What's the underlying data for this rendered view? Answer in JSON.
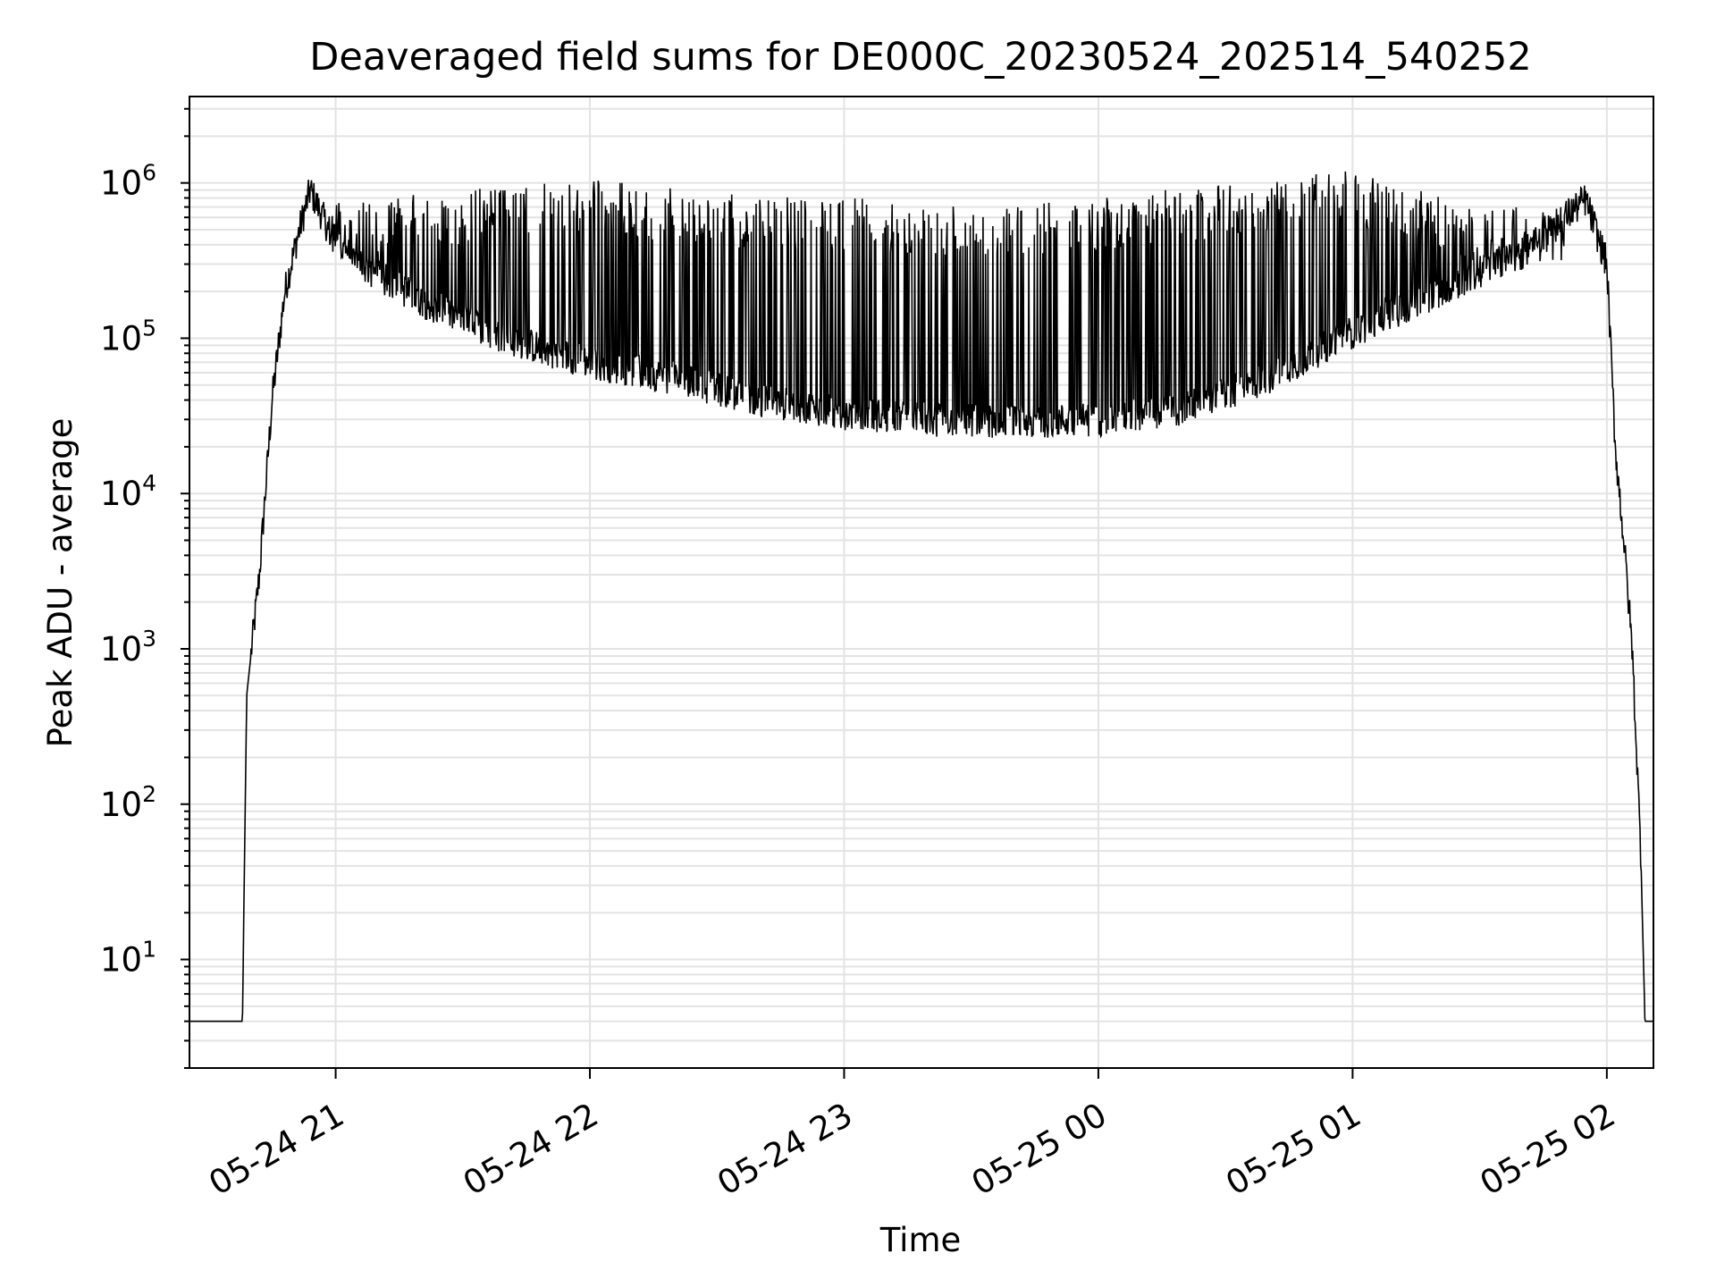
{
  "chart_data": {
    "type": "line",
    "title": "Deaveraged field sums for DE000C_20230524_202514_540252",
    "xlabel": "Time",
    "ylabel": "Peak ADU - average",
    "yscale": "log",
    "ylim": [
      2.0,
      3600000
    ],
    "xlim": [
      "2023-05-24 20:25:30",
      "2023-05-25 02:11:00"
    ],
    "grid": true,
    "line_color": "#000000",
    "grid_color": "#e3e3e3",
    "x_ticks": [
      {
        "value": "2023-05-24 21:00",
        "label": "05-24 21"
      },
      {
        "value": "2023-05-24 22:00",
        "label": "05-24 22"
      },
      {
        "value": "2023-05-24 23:00",
        "label": "05-24 23"
      },
      {
        "value": "2023-05-25 00:00",
        "label": "05-25 00"
      },
      {
        "value": "2023-05-25 01:00",
        "label": "05-25 01"
      },
      {
        "value": "2023-05-25 02:00",
        "label": "05-25 02"
      }
    ],
    "y_ticks": [
      {
        "value": 10,
        "base": "10",
        "exp": "1"
      },
      {
        "value": 100,
        "base": "10",
        "exp": "2"
      },
      {
        "value": 1000,
        "base": "10",
        "exp": "3"
      },
      {
        "value": 10000,
        "base": "10",
        "exp": "4"
      },
      {
        "value": 100000,
        "base": "10",
        "exp": "5"
      },
      {
        "value": 1000000,
        "base": "10",
        "exp": "6"
      }
    ],
    "series": [
      {
        "description_envelope": "base level (lower envelope)",
        "x": [
          "2023-05-24 20:25:30",
          "2023-05-24 20:35",
          "2023-05-24 20:38",
          "2023-05-24 20:39",
          "2023-05-24 20:42",
          "2023-05-24 20:45",
          "2023-05-24 20:48",
          "2023-05-24 20:51",
          "2023-05-24 20:54",
          "2023-05-24 20:57",
          "2023-05-24 21:00",
          "2023-05-24 21:10",
          "2023-05-24 21:25",
          "2023-05-24 21:40",
          "2023-05-24 22:00",
          "2023-05-24 22:20",
          "2023-05-24 22:40",
          "2023-05-24 23:00",
          "2023-05-24 23:20",
          "2023-05-24 23:40",
          "2023-05-25 00:00",
          "2023-05-25 00:20",
          "2023-05-25 00:40",
          "2023-05-25 01:00",
          "2023-05-25 01:20",
          "2023-05-25 01:40",
          "2023-05-25 01:50",
          "2023-05-25 01:55",
          "2023-05-25 02:00",
          "2023-05-25 02:02",
          "2023-05-25 02:04",
          "2023-05-25 02:06",
          "2023-05-25 02:08",
          "2023-05-25 02:09",
          "2023-05-25 02:11:00"
        ],
        "y": [
          4,
          4,
          4,
          500,
          3000,
          40000,
          200000,
          450000,
          900000,
          600000,
          400000,
          250000,
          150000,
          100000,
          70000,
          55000,
          40000,
          33000,
          30000,
          29000,
          30000,
          35000,
          55000,
          110000,
          200000,
          350000,
          600000,
          780000,
          300000,
          20000,
          5000,
          1000,
          50,
          4,
          4
        ]
      },
      {
        "description_envelope": "spike peaks (upper envelope)",
        "x": [
          "2023-05-24 21:10",
          "2023-05-24 21:40",
          "2023-05-24 22:00",
          "2023-05-24 22:30",
          "2023-05-24 23:00",
          "2023-05-24 23:30",
          "2023-05-25 00:00",
          "2023-05-25 00:30",
          "2023-05-25 01:00",
          "2023-05-25 01:30"
        ],
        "y": [
          800000,
          950000,
          1100000,
          850000,
          800000,
          750000,
          800000,
          1000000,
          1200000,
          700000
        ]
      }
    ]
  }
}
